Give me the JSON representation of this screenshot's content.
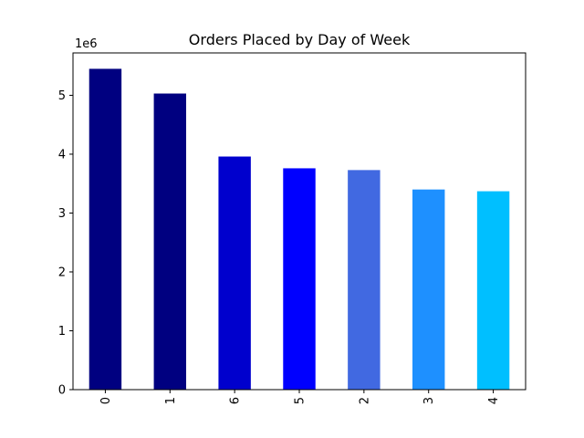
{
  "chart_data": {
    "type": "bar",
    "title": "Orders Placed by Day of Week",
    "xlabel": "",
    "ylabel": "",
    "y_offset_label": "1e6",
    "ylim": [
      0,
      5.72
    ],
    "y_ticks": [
      0,
      1,
      2,
      3,
      4,
      5
    ],
    "grid": false,
    "categories": [
      "0",
      "1",
      "6",
      "5",
      "2",
      "3",
      "4"
    ],
    "values": [
      5.45,
      5.03,
      3.96,
      3.76,
      3.73,
      3.4,
      3.37
    ],
    "colors": [
      "#000080",
      "#000080",
      "#0000CD",
      "#0000FF",
      "#4169E1",
      "#1E90FF",
      "#00BFFF"
    ]
  }
}
